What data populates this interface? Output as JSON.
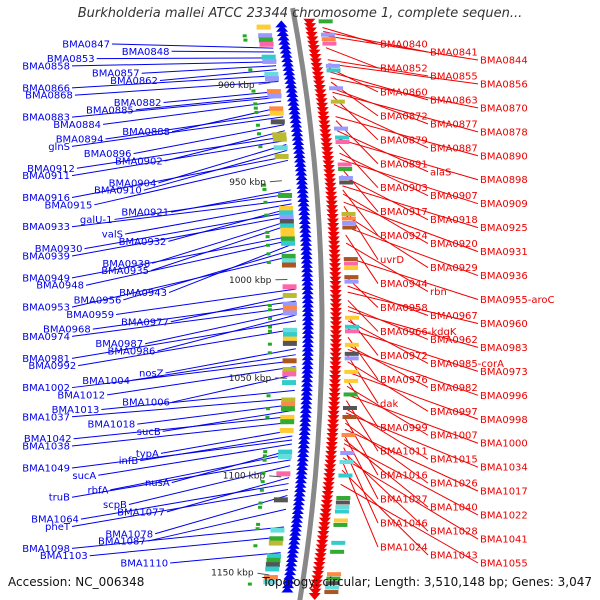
{
  "title": "Burkholderia mallei ATCC 23344 chromosome 1, complete sequen...",
  "accession_text": "Accession: NC_006348",
  "summary_text": "Topology: circular; Length: 3,510,148 bp; Genes: 3,047",
  "colors": {
    "forward_strand": "#0000ee",
    "reverse_strand": "#ee0000",
    "backbone": "#888888",
    "tick_label": "#222222"
  },
  "scale_ticks": [
    {
      "label": "900 kbp",
      "kbp": 900
    },
    {
      "label": "950 kbp",
      "kbp": 950
    },
    {
      "label": "1000 kbp",
      "kbp": 1000
    },
    {
      "label": "1050 kbp",
      "kbp": 1050
    },
    {
      "label": "1100 kbp",
      "kbp": 1100
    },
    {
      "label": "1150 kbp",
      "kbp": 1150
    }
  ],
  "forward_genes": [
    {
      "label": "BMA0847",
      "kbp": 883
    },
    {
      "label": "BMA0848",
      "kbp": 885
    },
    {
      "label": "BMA0853",
      "kbp": 888
    },
    {
      "label": "BMA0858",
      "kbp": 890
    },
    {
      "label": "BMA0857",
      "kbp": 892
    },
    {
      "label": "BMA0862",
      "kbp": 894
    },
    {
      "label": "BMA0866",
      "kbp": 897
    },
    {
      "label": "BMA0868",
      "kbp": 900
    },
    {
      "label": "BMA0882",
      "kbp": 905
    },
    {
      "label": "BMA0885",
      "kbp": 907
    },
    {
      "label": "BMA0883",
      "kbp": 908
    },
    {
      "label": "BMA0884",
      "kbp": 910
    },
    {
      "label": "BMA0888",
      "kbp": 913
    },
    {
      "label": "BMA0894",
      "kbp": 916
    },
    {
      "label": "glnS",
      "kbp": 918
    },
    {
      "label": "BMA0896",
      "kbp": 922
    },
    {
      "label": "BMA0902",
      "kbp": 925
    },
    {
      "label": "BMA0912",
      "kbp": 928
    },
    {
      "label": "BMA0911",
      "kbp": 930
    },
    {
      "label": "BMA0904",
      "kbp": 932
    },
    {
      "label": "BMA0910",
      "kbp": 935
    },
    {
      "label": "BMA0916",
      "kbp": 938
    },
    {
      "label": "BMA0915",
      "kbp": 940
    },
    {
      "label": "BMA0921",
      "kbp": 955
    },
    {
      "label": "galU-1",
      "kbp": 957
    },
    {
      "label": "BMA0933",
      "kbp": 960
    },
    {
      "label": "valS",
      "kbp": 962
    },
    {
      "label": "BMA0932",
      "kbp": 964
    },
    {
      "label": "BMA0930",
      "kbp": 966
    },
    {
      "label": "BMA0939",
      "kbp": 968
    },
    {
      "label": "BMA0938",
      "kbp": 970
    },
    {
      "label": "BMA0935",
      "kbp": 972
    },
    {
      "label": "BMA0949",
      "kbp": 978
    },
    {
      "label": "BMA0948",
      "kbp": 980
    },
    {
      "label": "BMA0943",
      "kbp": 982
    },
    {
      "label": "BMA0956",
      "kbp": 985
    },
    {
      "label": "BMA0953",
      "kbp": 988
    },
    {
      "label": "BMA0959",
      "kbp": 1005
    },
    {
      "label": "BMA0977",
      "kbp": 1008
    },
    {
      "label": "BMA0968",
      "kbp": 1011
    },
    {
      "label": "BMA0974",
      "kbp": 1014
    },
    {
      "label": "BMA0987",
      "kbp": 1016
    },
    {
      "label": "BMA0986",
      "kbp": 1018
    },
    {
      "label": "BMA0981",
      "kbp": 1021
    },
    {
      "label": "BMA0992",
      "kbp": 1025
    },
    {
      "label": "nosZ",
      "kbp": 1035
    },
    {
      "label": "BMA1004",
      "kbp": 1038
    },
    {
      "label": "BMA1002",
      "kbp": 1041
    },
    {
      "label": "BMA1012",
      "kbp": 1044
    },
    {
      "label": "BMA1006",
      "kbp": 1048
    },
    {
      "label": "BMA1013",
      "kbp": 1056
    },
    {
      "label": "BMA1037",
      "kbp": 1060
    },
    {
      "label": "BMA1018",
      "kbp": 1063
    },
    {
      "label": "sucB",
      "kbp": 1066
    },
    {
      "label": "BMA1042",
      "kbp": 1069
    },
    {
      "label": "BMA1038",
      "kbp": 1072
    },
    {
      "label": "typA",
      "kbp": 1076
    },
    {
      "label": "infB",
      "kbp": 1079
    },
    {
      "label": "BMA1049",
      "kbp": 1081
    },
    {
      "label": "sucA",
      "kbp": 1083
    },
    {
      "label": "nusA",
      "kbp": 1086
    },
    {
      "label": "rbfA",
      "kbp": 1088
    },
    {
      "label": "truB",
      "kbp": 1091
    },
    {
      "label": "scpB",
      "kbp": 1094
    },
    {
      "label": "BMA1077",
      "kbp": 1100
    },
    {
      "label": "BMA1064",
      "kbp": 1103
    },
    {
      "label": "pheT",
      "kbp": 1106
    },
    {
      "label": "BMA1078",
      "kbp": 1109
    },
    {
      "label": "BMA1087",
      "kbp": 1116
    },
    {
      "label": "BMA1098",
      "kbp": 1125
    },
    {
      "label": "BMA1103",
      "kbp": 1130
    },
    {
      "label": "BMA1110",
      "kbp": 1138
    }
  ],
  "reverse_genes": [
    {
      "label": "BMA0840",
      "kbp": 877
    },
    {
      "label": "BMA0841",
      "kbp": 879
    },
    {
      "label": "BMA0844",
      "kbp": 881
    },
    {
      "label": "BMA0852",
      "kbp": 887
    },
    {
      "label": "BMA0855",
      "kbp": 893
    },
    {
      "label": "BMA0856",
      "kbp": 895
    },
    {
      "label": "BMA0860",
      "kbp": 897
    },
    {
      "label": "BMA0863",
      "kbp": 899
    },
    {
      "label": "BMA0870",
      "kbp": 902
    },
    {
      "label": "BMA0872",
      "kbp": 904
    },
    {
      "label": "BMA0877",
      "kbp": 907
    },
    {
      "label": "BMA0878",
      "kbp": 909
    },
    {
      "label": "BMA0879",
      "kbp": 911
    },
    {
      "label": "BMA0887",
      "kbp": 915
    },
    {
      "label": "BMA0890",
      "kbp": 921
    },
    {
      "label": "BMA0891",
      "kbp": 923
    },
    {
      "label": "alaS",
      "kbp": 928
    },
    {
      "label": "BMA0898",
      "kbp": 932
    },
    {
      "label": "BMA0903",
      "kbp": 935
    },
    {
      "label": "BMA0907",
      "kbp": 939
    },
    {
      "label": "BMA0909",
      "kbp": 942
    },
    {
      "label": "BMA0917",
      "kbp": 946
    },
    {
      "label": "BMA0918",
      "kbp": 950
    },
    {
      "label": "BMA0925",
      "kbp": 955
    },
    {
      "label": "BMA0924",
      "kbp": 957
    },
    {
      "label": "BMA0920",
      "kbp": 959
    },
    {
      "label": "BMA0931",
      "kbp": 963
    },
    {
      "label": "uvrD",
      "kbp": 965
    },
    {
      "label": "BMA0929",
      "kbp": 969
    },
    {
      "label": "BMA0936",
      "kbp": 975
    },
    {
      "label": "BMA0944",
      "kbp": 979
    },
    {
      "label": "rbn",
      "kbp": 983
    },
    {
      "label": "BMA0955-aroC",
      "kbp": 990
    },
    {
      "label": "BMA0958",
      "kbp": 1000
    },
    {
      "label": "BMA0967",
      "kbp": 1004
    },
    {
      "label": "BMA0960",
      "kbp": 1007
    },
    {
      "label": "BMA0966-kdgK",
      "kbp": 1011
    },
    {
      "label": "BMA0962",
      "kbp": 1014
    },
    {
      "label": "BMA0983",
      "kbp": 1016
    },
    {
      "label": "BMA0972",
      "kbp": 1019
    },
    {
      "label": "BMA0985-corA",
      "kbp": 1021
    },
    {
      "label": "BMA0973",
      "kbp": 1025
    },
    {
      "label": "BMA0976",
      "kbp": 1029
    },
    {
      "label": "BMA0982",
      "kbp": 1033
    },
    {
      "label": "BMA0996",
      "kbp": 1035
    },
    {
      "label": "dak",
      "kbp": 1038
    },
    {
      "label": "BMA0997",
      "kbp": 1041
    },
    {
      "label": "BMA0998",
      "kbp": 1046
    },
    {
      "label": "BMA0999",
      "kbp": 1050
    },
    {
      "label": "BMA1007",
      "kbp": 1053
    },
    {
      "label": "BMA1000",
      "kbp": 1057
    },
    {
      "label": "BMA1011",
      "kbp": 1060
    },
    {
      "label": "BMA1015",
      "kbp": 1064
    },
    {
      "label": "BMA1034",
      "kbp": 1066
    },
    {
      "label": "BMA1016",
      "kbp": 1069
    },
    {
      "label": "BMA1026",
      "kbp": 1071
    },
    {
      "label": "BMA1017",
      "kbp": 1074
    },
    {
      "label": "BMA1027",
      "kbp": 1077
    },
    {
      "label": "BMA1040",
      "kbp": 1079
    },
    {
      "label": "BMA1022",
      "kbp": 1081
    },
    {
      "label": "BMA1046",
      "kbp": 1083
    },
    {
      "label": "BMA1028",
      "kbp": 1085
    },
    {
      "label": "BMA1041",
      "kbp": 1088
    },
    {
      "label": "BMA1024",
      "kbp": 1090
    },
    {
      "label": "BMA1043",
      "kbp": 1094
    },
    {
      "label": "BMA1055",
      "kbp": 1101
    }
  ]
}
